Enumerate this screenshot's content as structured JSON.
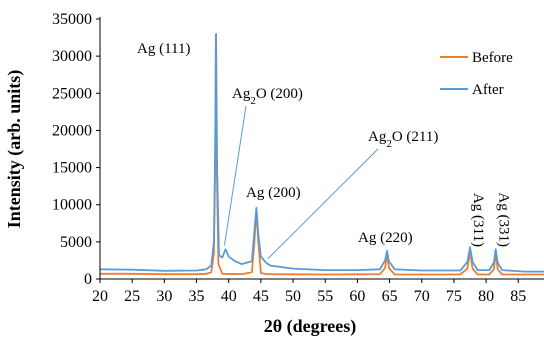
{
  "chart_data": {
    "type": "line",
    "xlabel": "2θ (degrees)",
    "ylabel": "Intensity (arb. units)",
    "xlim": [
      20,
      89
    ],
    "ylim": [
      0,
      35000
    ],
    "xticks": [
      20,
      25,
      30,
      35,
      40,
      45,
      50,
      55,
      60,
      65,
      70,
      75,
      80,
      85
    ],
    "yticks": [
      0,
      5000,
      10000,
      15000,
      20000,
      25000,
      30000,
      35000
    ],
    "legend_position": "top-right",
    "series": [
      {
        "name": "Before",
        "color": "#ED7D31",
        "points": [
          [
            20,
            700
          ],
          [
            25,
            700
          ],
          [
            30,
            650
          ],
          [
            35,
            650
          ],
          [
            36.5,
            700
          ],
          [
            37.3,
            900
          ],
          [
            37.7,
            3500
          ],
          [
            37.9,
            15000
          ],
          [
            38.0,
            32800
          ],
          [
            38.15,
            15000
          ],
          [
            38.4,
            2000
          ],
          [
            39.0,
            700
          ],
          [
            42,
            650
          ],
          [
            43.6,
            900
          ],
          [
            44.0,
            5000
          ],
          [
            44.3,
            9200
          ],
          [
            44.6,
            5000
          ],
          [
            45.0,
            800
          ],
          [
            46,
            650
          ],
          [
            55,
            600
          ],
          [
            63.5,
            650
          ],
          [
            64.3,
            1500
          ],
          [
            64.6,
            3300
          ],
          [
            64.9,
            1500
          ],
          [
            65.8,
            600
          ],
          [
            76,
            600
          ],
          [
            77.1,
            1400
          ],
          [
            77.5,
            3700
          ],
          [
            77.9,
            1400
          ],
          [
            78.7,
            600
          ],
          [
            80.5,
            600
          ],
          [
            81.2,
            1300
          ],
          [
            81.5,
            3500
          ],
          [
            81.8,
            1300
          ],
          [
            82.5,
            600
          ],
          [
            89,
            600
          ]
        ]
      },
      {
        "name": "After",
        "color": "#5B9BD5",
        "points": [
          [
            20,
            1300
          ],
          [
            25,
            1250
          ],
          [
            30,
            1100
          ],
          [
            35,
            1150
          ],
          [
            36.5,
            1300
          ],
          [
            37.3,
            1800
          ],
          [
            37.7,
            5000
          ],
          [
            37.9,
            18000
          ],
          [
            38.05,
            33000
          ],
          [
            38.2,
            15000
          ],
          [
            38.5,
            3200
          ],
          [
            39.0,
            2900
          ],
          [
            39.5,
            4000
          ],
          [
            40.0,
            3000
          ],
          [
            41,
            2400
          ],
          [
            42,
            2000
          ],
          [
            43.6,
            2400
          ],
          [
            44.0,
            6500
          ],
          [
            44.3,
            9600
          ],
          [
            44.6,
            6000
          ],
          [
            45.0,
            3000
          ],
          [
            45.8,
            2200
          ],
          [
            46.5,
            1800
          ],
          [
            50,
            1400
          ],
          [
            55,
            1200
          ],
          [
            60,
            1200
          ],
          [
            63.5,
            1300
          ],
          [
            64.3,
            2500
          ],
          [
            64.6,
            3800
          ],
          [
            64.9,
            2400
          ],
          [
            65.8,
            1300
          ],
          [
            70,
            1150
          ],
          [
            76,
            1150
          ],
          [
            77.1,
            2300
          ],
          [
            77.5,
            4300
          ],
          [
            77.9,
            2300
          ],
          [
            78.7,
            1200
          ],
          [
            80.5,
            1200
          ],
          [
            81.2,
            2200
          ],
          [
            81.5,
            4000
          ],
          [
            81.8,
            2200
          ],
          [
            82.5,
            1200
          ],
          [
            86,
            1000
          ],
          [
            89,
            1000
          ]
        ]
      }
    ],
    "annotations": [
      {
        "id": "ag111",
        "text": "Ag (111)",
        "x": 38,
        "y": 33000
      },
      {
        "id": "ag2o200",
        "pre": "Ag",
        "sub": "2",
        "post": "O (200)",
        "x": 39.5,
        "y": 4000
      },
      {
        "id": "ag2o211",
        "pre": "Ag",
        "sub": "2",
        "post": "O (211)",
        "x": 45.8,
        "y": 2200
      },
      {
        "id": "ag200",
        "text": "Ag (200)",
        "x": 44.3,
        "y": 9600
      },
      {
        "id": "ag220",
        "text": "Ag (220)",
        "x": 64.6,
        "y": 3800
      },
      {
        "id": "ag311",
        "text": "Ag (311)",
        "x": 77.5,
        "y": 4300
      },
      {
        "id": "ag331",
        "text": "Ag (331)",
        "x": 81.5,
        "y": 4000
      }
    ]
  }
}
